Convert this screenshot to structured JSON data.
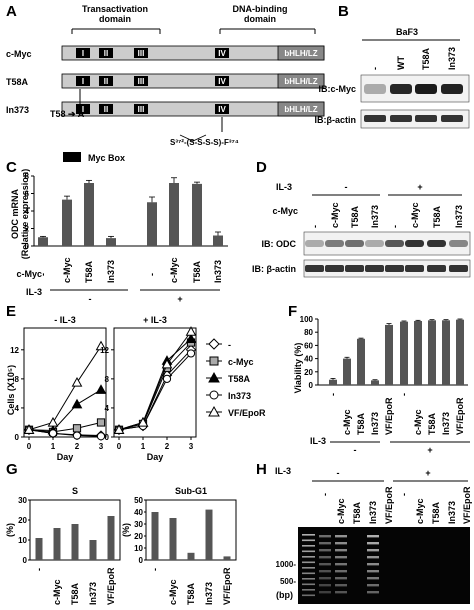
{
  "colors": {
    "bar": "#555555",
    "box": "#cccccc",
    "bhlh": "#888888",
    "gel": "#050505"
  },
  "panelA": {
    "label": "A",
    "header_left": "Transactivation\ndomain",
    "header_right": "DNA-binding\ndomain",
    "constructs": [
      {
        "name": "c-Myc",
        "boxes": [
          "I",
          "II",
          "III",
          "IV"
        ],
        "tag": "bHLH/LZ"
      },
      {
        "name": "T58A",
        "boxes": [
          "I",
          "II",
          "III",
          "IV"
        ],
        "tag": "bHLH/LZ"
      },
      {
        "name": "In373",
        "boxes": [
          "I",
          "II",
          "III",
          "IV"
        ],
        "tag": "bHLH/LZ"
      }
    ],
    "mutation": "T58 ➔ A",
    "insertion": "S³⁷²-(S-S-S-S)-F³⁷⁴",
    "legend": "Myc Box"
  },
  "panelB": {
    "label": "B",
    "cell": "BaF3",
    "lanes": [
      "-",
      "WT",
      "T58A",
      "In373"
    ],
    "rows": [
      "IB:c-Myc",
      "IB:β-actin"
    ],
    "band_intensity": {
      "cmyc": [
        0.35,
        0.9,
        0.95,
        0.92
      ],
      "actin": [
        0.85,
        0.85,
        0.85,
        0.85
      ]
    }
  },
  "panelC": {
    "label": "C",
    "ylabel": "ODC mRNA\n(Relative expression)",
    "ylim": [
      0,
      8
    ],
    "yticks": [
      0,
      2,
      4,
      6,
      8
    ],
    "row1_label": "c-Myc",
    "row2_label": "IL-3",
    "groups": [
      {
        "il3": "-",
        "categories": [
          "-",
          "c-Myc",
          "T58A",
          "In373"
        ],
        "values": [
          1.0,
          5.3,
          7.2,
          0.9
        ],
        "errors": [
          0.1,
          0.4,
          0.3,
          0.2
        ]
      },
      {
        "il3": "+",
        "categories": [
          "-",
          "c-Myc",
          "T58A",
          "In373"
        ],
        "values": [
          5.0,
          7.2,
          7.1,
          1.2
        ],
        "errors": [
          0.6,
          0.6,
          0.2,
          0.4
        ]
      }
    ]
  },
  "panelD": {
    "label": "D",
    "il3_label": "IL-3",
    "il3_groups": [
      "-",
      "+"
    ],
    "row_label": "c-Myc",
    "lanes": [
      "-",
      "c-Myc",
      "T58A",
      "In373",
      "-",
      "c-Myc",
      "T58A",
      "In373"
    ],
    "rows": [
      "IB: ODC",
      "IB: β-actin"
    ],
    "band_intensity": {
      "odc": [
        0.35,
        0.55,
        0.6,
        0.35,
        0.7,
        0.85,
        0.85,
        0.5
      ],
      "actin": [
        0.85,
        0.85,
        0.85,
        0.85,
        0.85,
        0.85,
        0.85,
        0.85
      ]
    }
  },
  "panelE": {
    "label": "E",
    "ylabel": "Cells (X10⁵)",
    "xlabel": "Day",
    "xticks": [
      0,
      1,
      2,
      3
    ],
    "yticks": [
      0,
      4,
      8,
      12
    ],
    "ylim": [
      0,
      15
    ],
    "subplots": [
      {
        "title": "- IL-3",
        "series": [
          {
            "name": "-",
            "marker": "diamond-open",
            "values": [
              1,
              0.5,
              0.3,
              0.2
            ]
          },
          {
            "name": "c-Myc",
            "marker": "square-grey",
            "values": [
              1,
              0.7,
              1.2,
              2.0
            ]
          },
          {
            "name": "T58A",
            "marker": "triangle-filled",
            "values": [
              1,
              0.9,
              4.5,
              6.5
            ]
          },
          {
            "name": "In373",
            "marker": "circle-open",
            "values": [
              1,
              0.5,
              0.2,
              0.1
            ]
          },
          {
            "name": "VF/EpoR",
            "marker": "triangle-open",
            "values": [
              1,
              2.0,
              7.5,
              12.5
            ]
          }
        ]
      },
      {
        "title": "+ IL-3",
        "series": [
          {
            "name": "-",
            "marker": "diamond-open",
            "values": [
              1,
              1.5,
              8.5,
              12.0
            ]
          },
          {
            "name": "c-Myc",
            "marker": "square-grey",
            "values": [
              1,
              1.8,
              9.5,
              13.0
            ]
          },
          {
            "name": "T58A",
            "marker": "triangle-filled",
            "values": [
              1,
              2.0,
              10.5,
              13.5
            ]
          },
          {
            "name": "In373",
            "marker": "circle-open",
            "values": [
              1,
              1.5,
              8.0,
              11.5
            ]
          },
          {
            "name": "VF/EpoR",
            "marker": "triangle-open",
            "values": [
              1,
              2.0,
              10.0,
              14.5
            ]
          }
        ]
      }
    ],
    "legend": [
      "-",
      "c-Myc",
      "T58A",
      "In373",
      "VF/EpoR"
    ]
  },
  "panelF": {
    "label": "F",
    "ylabel": "Viability (%)",
    "ylim": [
      0,
      100
    ],
    "yticks": [
      0,
      20,
      40,
      60,
      80,
      100
    ],
    "categories": [
      "-",
      "c-Myc",
      "T58A",
      "In373",
      "VF/EpoR",
      "-",
      "c-Myc",
      "T58A",
      "In373",
      "VF/EpoR"
    ],
    "values": [
      8,
      40,
      70,
      7,
      91,
      96,
      97,
      98,
      98,
      99
    ],
    "errors": [
      2,
      2,
      1,
      1,
      2,
      1,
      1,
      1,
      1,
      1
    ],
    "row_label": "IL-3",
    "il3_groups": [
      "-",
      "+"
    ]
  },
  "panelG": {
    "label": "G",
    "ylabel": "(%)",
    "categories": [
      "-",
      "c-Myc",
      "T58A",
      "In373",
      "VF/EpoR"
    ],
    "subplots": [
      {
        "title": "S",
        "ylim": [
          0,
          30
        ],
        "yticks": [
          0,
          10,
          20,
          30
        ],
        "values": [
          11,
          16,
          18,
          10,
          22
        ]
      },
      {
        "title": "Sub-G1",
        "ylim": [
          0,
          50
        ],
        "yticks": [
          0,
          10,
          20,
          30,
          40,
          50
        ],
        "values": [
          40,
          35,
          6,
          42,
          3
        ]
      }
    ]
  },
  "panelH": {
    "label": "H",
    "il3_label": "IL-3",
    "il3_groups": [
      "-",
      "+"
    ],
    "lanes": [
      "-",
      "c-Myc",
      "T58A",
      "In373",
      "VF/EpoR",
      "-",
      "c-Myc",
      "T58A",
      "In373",
      "VF/EpoR"
    ],
    "size_markers": [
      "1000-",
      "500-"
    ],
    "unit": "(bp)"
  }
}
